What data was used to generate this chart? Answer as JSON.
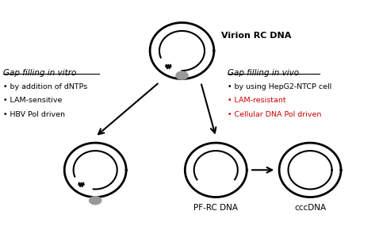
{
  "bg_color": "#ffffff",
  "title_virion": "Virion RC DNA",
  "title_vitro": "Gap filling in vitro",
  "title_vivo": "Gap filling in vivo",
  "label_pfrc": "PF-RC DNA",
  "label_ccc": "cccDNA",
  "bullets_vitro": [
    {
      "text": "by addition of dNTPs",
      "color": "#000000"
    },
    {
      "text": "LAM-sensitive",
      "color": "#000000"
    },
    {
      "text": "HBV Pol driven",
      "color": "#000000"
    }
  ],
  "bullets_vivo": [
    {
      "text": "by using HepG2-NTCP cell",
      "color": "#000000"
    },
    {
      "text": "LAM-resistant",
      "color": "#cc0000"
    },
    {
      "text": "Cellular DNA Pol driven",
      "color": "#cc0000"
    }
  ]
}
